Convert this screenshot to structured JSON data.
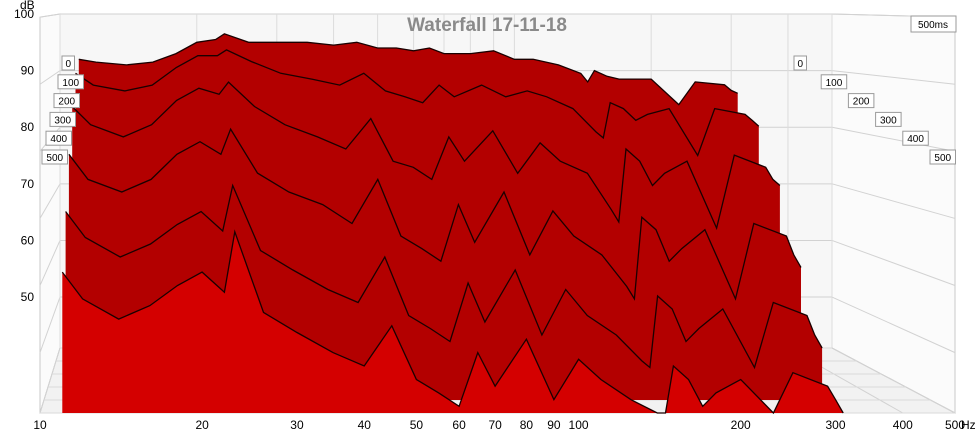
{
  "chart_data": {
    "type": "area",
    "subtype": "waterfall-3d",
    "title": "Waterfall 17-11-18",
    "time_window_label": "500ms",
    "ylabel": "dB",
    "xlabel_unit": "Hz",
    "x_scale": "log",
    "xlim": [
      10,
      500
    ],
    "ylim": [
      41,
      100
    ],
    "grid": true,
    "x_ticks": [
      {
        "value": 10,
        "label": "10"
      },
      {
        "value": 20,
        "label": "20"
      },
      {
        "value": 30,
        "label": "30"
      },
      {
        "value": 40,
        "label": "40"
      },
      {
        "value": 50,
        "label": "50"
      },
      {
        "value": 60,
        "label": "60"
      },
      {
        "value": 70,
        "label": "70"
      },
      {
        "value": 80,
        "label": "80"
      },
      {
        "value": 90,
        "label": "90"
      },
      {
        "value": 100,
        "label": "100"
      },
      {
        "value": 200,
        "label": "200"
      },
      {
        "value": 300,
        "label": "300"
      },
      {
        "value": 400,
        "label": "400"
      },
      {
        "value": 500,
        "label": "500"
      }
    ],
    "y_ticks": [
      {
        "value": 100,
        "label": "100"
      },
      {
        "value": 90,
        "label": "90"
      },
      {
        "value": 80,
        "label": "80"
      },
      {
        "value": 70,
        "label": "70"
      },
      {
        "value": 60,
        "label": "60"
      },
      {
        "value": 50,
        "label": "50"
      }
    ],
    "time_ticks_left": [
      "0",
      "100",
      "200",
      "300",
      "400",
      "500"
    ],
    "time_ticks_right": [
      "0",
      "100",
      "200",
      "300",
      "400",
      "500"
    ],
    "time_unit": "ms",
    "fill_color": "#b30000",
    "fill_color_light": "#d40000",
    "line_color": "#1a0000",
    "slices": [
      {
        "time_ms": 0,
        "freq": [
          11,
          12,
          14,
          16,
          18,
          20,
          22,
          23,
          26,
          30,
          35,
          40,
          45,
          50,
          55,
          60,
          65,
          70,
          80,
          90,
          100,
          110,
          125,
          140,
          145,
          150,
          160,
          170,
          180,
          200,
          230,
          250,
          290,
          300,
          310
        ],
        "db": [
          92,
          91.5,
          91,
          91.5,
          93,
          95,
          95.5,
          96.5,
          95,
          95,
          95,
          94.5,
          95,
          94,
          94,
          93.5,
          94,
          93,
          93,
          93.5,
          92,
          92,
          91,
          89.5,
          88,
          90,
          89,
          88.5,
          88.5,
          88.5,
          84,
          88,
          87.5,
          86.5,
          86
        ]
      },
      {
        "time_ms": 100,
        "freq": [
          11,
          12,
          14,
          16,
          18,
          20,
          22,
          23,
          26,
          30,
          35,
          40,
          45,
          50,
          55,
          60,
          65,
          70,
          80,
          90,
          100,
          110,
          125,
          140,
          145,
          150,
          160,
          170,
          180,
          200,
          230,
          250,
          290,
          300,
          310
        ],
        "db": [
          90,
          88,
          87,
          88,
          91,
          93,
          93,
          94,
          92,
          90,
          89,
          88,
          90,
          87,
          86,
          85,
          88,
          86,
          88,
          86,
          87,
          86,
          84,
          80,
          79,
          85,
          84,
          82,
          83,
          84,
          76,
          84,
          83,
          82,
          81
        ]
      },
      {
        "time_ms": 200,
        "freq": [
          11,
          12,
          14,
          16,
          18,
          20,
          22,
          23,
          26,
          30,
          35,
          40,
          45,
          50,
          55,
          60,
          65,
          70,
          80,
          90,
          100,
          110,
          125,
          140,
          145,
          150,
          160,
          170,
          180,
          200,
          230,
          250,
          290,
          300,
          310
        ],
        "db": [
          85,
          82,
          80,
          82,
          86,
          88,
          87,
          89,
          85,
          82,
          80,
          78,
          83,
          76,
          75,
          73,
          80,
          76,
          81,
          74,
          79,
          76,
          74,
          68,
          66,
          78,
          76,
          72,
          74,
          76,
          65,
          77,
          75,
          73,
          72
        ]
      },
      {
        "time_ms": 300,
        "freq": [
          11,
          12,
          14,
          16,
          18,
          20,
          22,
          23,
          26,
          30,
          35,
          40,
          45,
          50,
          55,
          60,
          65,
          70,
          80,
          90,
          100,
          110,
          125,
          140,
          145,
          150,
          160,
          170,
          180,
          200,
          230,
          250,
          290,
          300,
          310
        ],
        "db": [
          78,
          74,
          72,
          74,
          78,
          80,
          78,
          82,
          75,
          72,
          70,
          67,
          74,
          65,
          63,
          61,
          70,
          64,
          72,
          62,
          69,
          65,
          62,
          57,
          55,
          68,
          66,
          61,
          63,
          66,
          55,
          67,
          65,
          62,
          60
        ]
      },
      {
        "time_ms": 400,
        "freq": [
          11,
          12,
          14,
          16,
          18,
          20,
          22,
          23,
          26,
          30,
          35,
          40,
          45,
          50,
          55,
          60,
          65,
          70,
          80,
          90,
          100,
          110,
          125,
          140,
          145,
          150,
          160,
          170,
          180,
          200,
          230,
          250,
          290,
          300,
          310
        ],
        "db": [
          70,
          66,
          63,
          65,
          68,
          70,
          67,
          74,
          64,
          61,
          58,
          56,
          63,
          54,
          52,
          50,
          59,
          53,
          61,
          51,
          58,
          54,
          51,
          47,
          46,
          57,
          55,
          50,
          52,
          55,
          46,
          56,
          54,
          51,
          49
        ]
      },
      {
        "time_ms": 500,
        "freq": [
          11,
          12,
          14,
          16,
          18,
          20,
          22,
          23,
          26,
          30,
          35,
          40,
          45,
          50,
          55,
          60,
          65,
          70,
          80,
          90,
          100,
          110,
          125,
          140,
          145,
          150,
          160,
          170,
          180,
          200,
          230,
          250,
          290,
          300,
          310
        ],
        "db": [
          62,
          58,
          55,
          57,
          60,
          62,
          59,
          68,
          56,
          53,
          50,
          48,
          54,
          46,
          44,
          42,
          50,
          45,
          52,
          43,
          49,
          46,
          43,
          41,
          41,
          48,
          46,
          42,
          44,
          46,
          41,
          47,
          45,
          43,
          41
        ]
      }
    ]
  }
}
